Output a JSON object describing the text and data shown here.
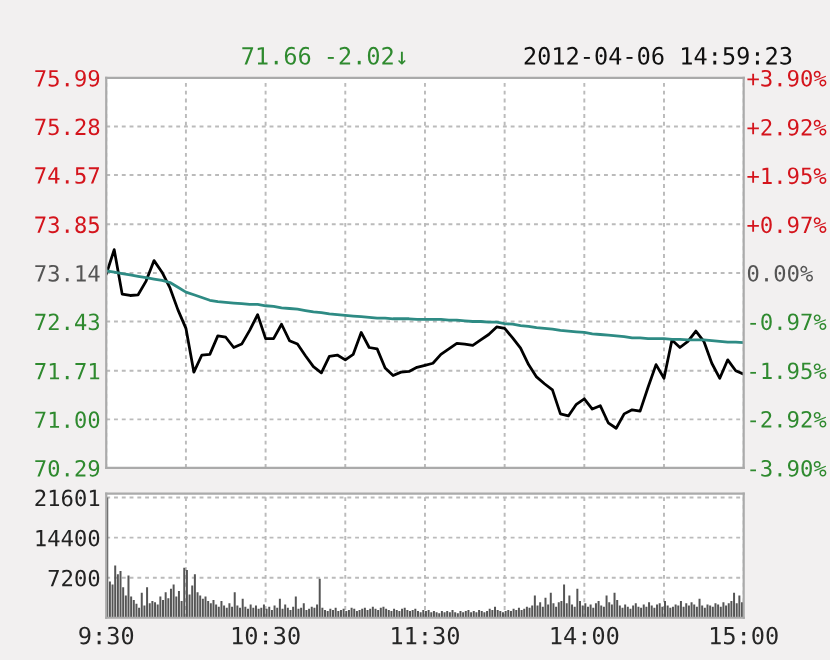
{
  "chart_data": [
    {
      "type": "line",
      "annotations": [
        "71.66",
        "-2.02↓",
        "2012-04-06 14:59:23"
      ],
      "categories": [
        null,
        null,
        null,
        null,
        null,
        null,
        null,
        null,
        null,
        null,
        null,
        null,
        null,
        null,
        null,
        null,
        null,
        null,
        null,
        null,
        null,
        null,
        null,
        null,
        null,
        null,
        null,
        null,
        null,
        null,
        null,
        null,
        null,
        null,
        null,
        null,
        null,
        null,
        null,
        null,
        null,
        null,
        null,
        null,
        null,
        null,
        null,
        null,
        null,
        null,
        null,
        null,
        null,
        null,
        null,
        null,
        null,
        null,
        null,
        null,
        null,
        null,
        null,
        null,
        null,
        null,
        null,
        null,
        null,
        null,
        null,
        null,
        null,
        null,
        null,
        null,
        null,
        null,
        null,
        null,
        null
      ],
      "ylim": [
        70.29,
        75.99
      ],
      "yticks": [
        70.29,
        {
          "value": 71,
          "label": "71.00"
        },
        71.71,
        72.43,
        73.14,
        73.85,
        74.57,
        75.28,
        75.99
      ],
      "y2lim": [
        -3.9,
        3.9
      ],
      "y2ticks": [
        {
          "value": -3.9,
          "label": "-3.90%"
        },
        {
          "value": -2.92,
          "label": "-2.92%"
        },
        {
          "value": -1.95,
          "label": "-1.95%"
        },
        {
          "value": -0.97,
          "label": "-0.97%"
        },
        {
          "value": 0,
          "label": "0.00%"
        },
        {
          "value": 0.97,
          "label": "+0.97%"
        },
        {
          "value": 1.95,
          "label": "+1.95%"
        },
        {
          "value": 2.92,
          "label": "+2.92%"
        },
        {
          "value": 3.9,
          "label": "+3.90%"
        }
      ],
      "grid": true,
      "tick_labels": "y",
      "series": [
        {
          "color": "#000000",
          "values": [
            73.12,
            73.48,
            72.83,
            72.81,
            72.82,
            73.02,
            73.32,
            73.15,
            72.92,
            72.6,
            72.33,
            71.69,
            71.94,
            71.95,
            72.22,
            72.2,
            72.05,
            72.1,
            72.3,
            72.53,
            72.18,
            72.18,
            72.39,
            72.15,
            72.1,
            71.93,
            71.77,
            71.68,
            71.92,
            71.94,
            71.87,
            71.95,
            72.27,
            72.05,
            72.03,
            71.75,
            71.64,
            71.69,
            71.7,
            71.76,
            71.79,
            71.82,
            71.95,
            72.03,
            72.11,
            72.1,
            72.08,
            72.16,
            72.24,
            72.35,
            72.33,
            72.19,
            72.04,
            71.8,
            71.62,
            71.52,
            71.43,
            71.08,
            71.05,
            71.22,
            71.3,
            71.15,
            71.2,
            70.95,
            70.87,
            71.08,
            71.14,
            71.12,
            71.47,
            71.8,
            71.6,
            72.16,
            72.05,
            72.14,
            72.29,
            72.14,
            71.82,
            71.6,
            71.87,
            71.71,
            71.66
          ]
        },
        {
          "color": "#2e8b84",
          "values": [
            73.17,
            73.15,
            73.13,
            73.11,
            73.09,
            73.07,
            73.05,
            73.03,
            73.0,
            72.93,
            72.86,
            72.82,
            72.78,
            72.74,
            72.72,
            72.71,
            72.7,
            72.69,
            72.68,
            72.68,
            72.66,
            72.65,
            72.63,
            72.62,
            72.61,
            72.59,
            72.57,
            72.56,
            72.54,
            72.53,
            72.52,
            72.51,
            72.5,
            72.49,
            72.48,
            72.48,
            72.47,
            72.47,
            72.47,
            72.46,
            72.46,
            72.46,
            72.46,
            72.45,
            72.45,
            72.44,
            72.43,
            72.43,
            72.42,
            72.42,
            72.4,
            72.39,
            72.37,
            72.36,
            72.34,
            72.33,
            72.32,
            72.3,
            72.29,
            72.28,
            72.27,
            72.25,
            72.24,
            72.23,
            72.22,
            72.21,
            72.19,
            72.19,
            72.18,
            72.18,
            72.18,
            72.17,
            72.17,
            72.16,
            72.16,
            72.16,
            72.15,
            72.14,
            72.13,
            72.13,
            72.12
          ]
        }
      ]
    },
    {
      "type": "bar",
      "ylim": [
        0,
        22300
      ],
      "yticks": [
        7200,
        14400,
        21601
      ],
      "grid": true,
      "color": "#555555",
      "categories": [
        "9:30",
        null,
        null,
        null,
        null,
        null,
        null,
        null,
        null,
        null,
        null,
        null,
        null,
        null,
        null,
        null,
        null,
        null,
        null,
        null,
        null,
        null,
        null,
        null,
        null,
        null,
        null,
        null,
        null,
        null,
        null,
        null,
        null,
        null,
        null,
        null,
        null,
        null,
        null,
        null,
        null,
        null,
        null,
        null,
        null,
        null,
        null,
        null,
        null,
        null,
        null,
        null,
        null,
        null,
        null,
        null,
        null,
        null,
        null,
        null,
        "10:30",
        null,
        null,
        null,
        null,
        null,
        null,
        null,
        null,
        null,
        null,
        null,
        null,
        null,
        null,
        null,
        null,
        null,
        null,
        null,
        null,
        null,
        null,
        null,
        null,
        null,
        null,
        null,
        null,
        null,
        null,
        null,
        null,
        null,
        null,
        null,
        null,
        null,
        null,
        null,
        null,
        null,
        null,
        null,
        null,
        null,
        null,
        null,
        null,
        null,
        null,
        null,
        null,
        null,
        null,
        null,
        null,
        null,
        null,
        null,
        "11:30",
        null,
        null,
        null,
        null,
        null,
        null,
        null,
        null,
        null,
        null,
        null,
        null,
        null,
        null,
        null,
        null,
        null,
        null,
        null,
        null,
        null,
        null,
        null,
        null,
        null,
        null,
        null,
        null,
        null,
        null,
        null,
        null,
        null,
        null,
        null,
        null,
        null,
        null,
        null,
        null,
        null,
        null,
        null,
        null,
        null,
        null,
        null,
        null,
        null,
        null,
        null,
        null,
        null,
        null,
        null,
        null,
        null,
        null,
        null,
        "14:00",
        null,
        null,
        null,
        null,
        null,
        null,
        null,
        null,
        null,
        null,
        null,
        null,
        null,
        null,
        null,
        null,
        null,
        null,
        null,
        null,
        null,
        null,
        null,
        null,
        null,
        null,
        null,
        null,
        null,
        null,
        null,
        null,
        null,
        null,
        null,
        null,
        null,
        null,
        null,
        null,
        null,
        null,
        null,
        null,
        null,
        null,
        null,
        null,
        null,
        null,
        null,
        null,
        null,
        null,
        null,
        null,
        null,
        null,
        null,
        "15:00"
      ],
      "values": [
        21600,
        6500,
        6000,
        9400,
        7800,
        8400,
        5500,
        4000,
        7600,
        3800,
        3200,
        2500,
        1800,
        4500,
        2200,
        5500,
        2600,
        3000,
        2800,
        2400,
        3800,
        3200,
        4600,
        3500,
        5200,
        6000,
        3800,
        4800,
        3000,
        9000,
        8600,
        4200,
        5800,
        7800,
        4600,
        4000,
        3400,
        3800,
        3000,
        2600,
        3200,
        2400,
        2000,
        3000,
        2200,
        1800,
        2600,
        2000,
        4600,
        2200,
        1800,
        3400,
        2000,
        1600,
        2400,
        1800,
        2200,
        1600,
        1800,
        2400,
        1600,
        2000,
        1400,
        2200,
        1800,
        3400,
        1600,
        2400,
        1800,
        1400,
        2000,
        3800,
        1600,
        1800,
        2600,
        1400,
        1600,
        2000,
        1800,
        2400,
        7000,
        1800,
        1400,
        1200,
        1600,
        1400,
        1800,
        1200,
        1400,
        1600,
        1200,
        1400,
        1800,
        1600,
        1200,
        1400,
        1600,
        1800,
        1400,
        1600,
        2000,
        1600,
        1400,
        1800,
        2000,
        1600,
        1400,
        1200,
        1600,
        1400,
        1200,
        1600,
        1800,
        1400,
        1200,
        1400,
        1600,
        1200,
        1000,
        1400,
        1200,
        1400,
        1000,
        1200,
        1000,
        800,
        1200,
        1000,
        1200,
        1000,
        1400,
        1000,
        800,
        1200,
        1000,
        1200,
        1400,
        1000,
        1200,
        1000,
        1400,
        1200,
        1000,
        1200,
        1600,
        1400,
        2000,
        1400,
        1200,
        1000,
        1200,
        1400,
        1200,
        1600,
        1400,
        1800,
        1400,
        1600,
        2000,
        1800,
        2200,
        4000,
        2200,
        2800,
        2000,
        3600,
        2400,
        4500,
        2600,
        2000,
        2800,
        3000,
        6000,
        2600,
        4000,
        2400,
        2000,
        5200,
        3000,
        2200,
        2600,
        2000,
        2400,
        1800,
        2600,
        3000,
        2200,
        2000,
        4000,
        2800,
        2400,
        4500,
        3200,
        2200,
        1800,
        2400,
        2000,
        1600,
        2200,
        2600,
        2000,
        1800,
        2400,
        2000,
        2800,
        2200,
        1800,
        2400,
        2600,
        2000,
        3000,
        2200,
        1800,
        2000,
        2400,
        2200,
        3000,
        2000,
        2600,
        2200,
        2800,
        2400,
        2000,
        3400,
        2200,
        1800,
        2400,
        2200,
        2000,
        2600,
        2400,
        2000,
        2800,
        2200,
        2600,
        3000,
        4500,
        2600,
        4000,
        2800,
        null
      ]
    }
  ]
}
